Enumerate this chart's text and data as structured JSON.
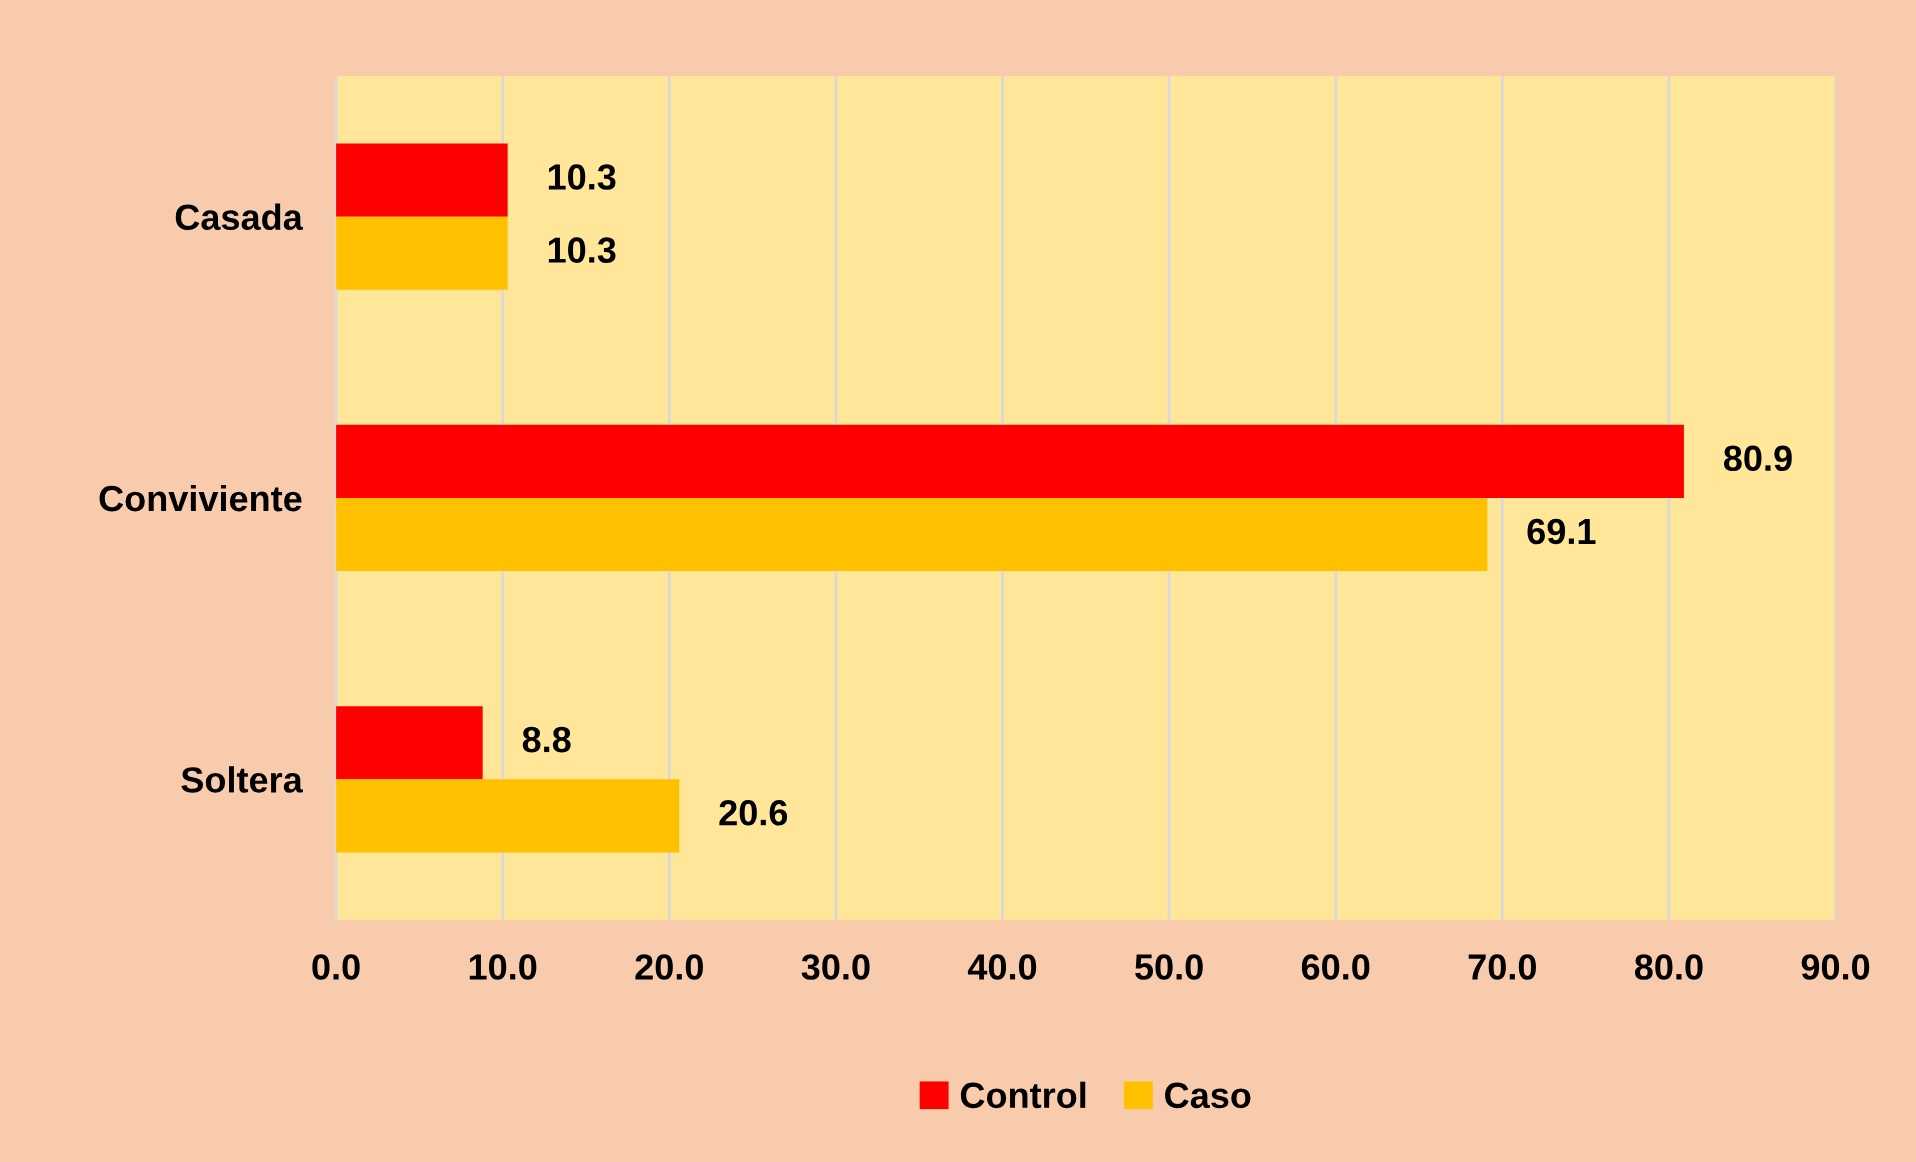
{
  "chart_data": {
    "type": "bar",
    "orientation": "horizontal",
    "categories": [
      "Casada",
      "Conviviente",
      "Soltera"
    ],
    "series": [
      {
        "name": "Control",
        "color": "#ff0000",
        "values": [
          10.3,
          80.9,
          8.8
        ]
      },
      {
        "name": "Caso",
        "color": "#ffc000",
        "values": [
          10.3,
          69.1,
          20.6
        ]
      }
    ],
    "xlim": [
      0,
      90
    ],
    "xticks": [
      {
        "value": 0,
        "label": "0.0"
      },
      {
        "value": 10,
        "label": "10.0"
      },
      {
        "value": 20,
        "label": "20.0"
      },
      {
        "value": 30,
        "label": "30.0"
      },
      {
        "value": 40,
        "label": "40.0"
      },
      {
        "value": 50,
        "label": "50.0"
      },
      {
        "value": 60,
        "label": "60.0"
      },
      {
        "value": 70,
        "label": "70.0"
      },
      {
        "value": 80,
        "label": "80.0"
      },
      {
        "value": 90,
        "label": "90.0"
      }
    ],
    "grid": "x",
    "legend": "bottom",
    "data_labels": true
  }
}
